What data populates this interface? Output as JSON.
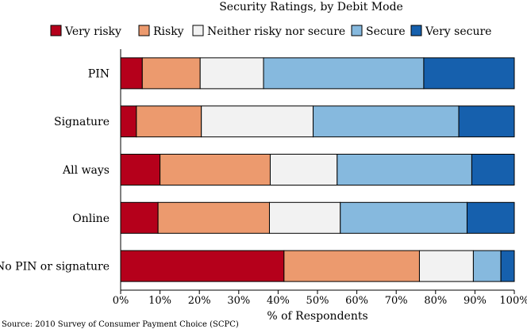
{
  "chart_data": {
    "type": "bar",
    "orientation": "horizontal",
    "stacked": true,
    "title": "Security Ratings, by Debit Mode",
    "xlabel": "% of Respondents",
    "ylabel": "",
    "xlim": [
      0,
      100
    ],
    "x_ticks": [
      "0%",
      "10%",
      "20%",
      "30%",
      "40%",
      "50%",
      "60%",
      "70%",
      "80%",
      "90%",
      "100%"
    ],
    "grid": false,
    "legend_position": "top",
    "categories": [
      "PIN",
      "Signature",
      "All ways",
      "Online",
      "No PIN or signature"
    ],
    "series": [
      {
        "name": "Very risky",
        "color": "#b5001b",
        "values": [
          5.5,
          4,
          10,
          9.5,
          41.5
        ]
      },
      {
        "name": "Risky",
        "color": "#ec9a6e",
        "values": [
          14.7,
          16.5,
          28,
          28.3,
          34.4
        ]
      },
      {
        "name": "Neither risky nor secure",
        "color": "#f2f2f2",
        "values": [
          16.1,
          28.4,
          17,
          18,
          13.7
        ]
      },
      {
        "name": "Secure",
        "color": "#86b9de",
        "values": [
          40.7,
          37,
          34.2,
          32.2,
          7
        ]
      },
      {
        "name": "Very secure",
        "color": "#1660ad",
        "values": [
          23,
          14.1,
          10.8,
          12,
          3.4
        ]
      }
    ],
    "source": "Source: 2010 Survey of Consumer Payment Choice (SCPC)"
  }
}
